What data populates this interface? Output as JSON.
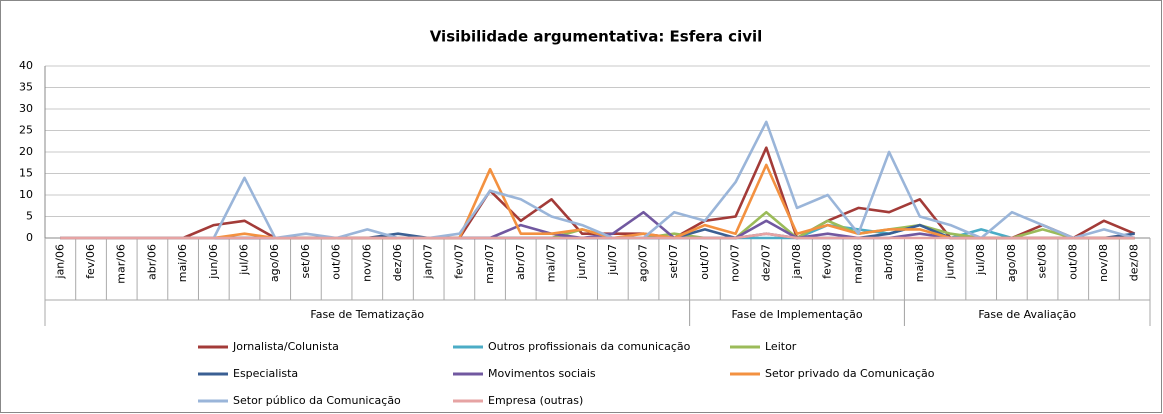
{
  "chart_data": {
    "type": "line",
    "title": "Visibilidade argumentativa: Esfera civil",
    "categories": [
      "jan/06",
      "fev/06",
      "mar/06",
      "abr/06",
      "mai/06",
      "jun/06",
      "jul/06",
      "ago/06",
      "set/06",
      "out/06",
      "nov/06",
      "dez/06",
      "jan/07",
      "fev/07",
      "mar/07",
      "abr/07",
      "mai/07",
      "jun/07",
      "jul/07",
      "ago/07",
      "set/07",
      "out/07",
      "nov/07",
      "dez/07",
      "jan/08",
      "fev/08",
      "mar/08",
      "abr/08",
      "mai/08",
      "jun/08",
      "jul/08",
      "ago/08",
      "set/08",
      "out/08",
      "nov/08",
      "dez/08"
    ],
    "groups": [
      {
        "label": "Fase de Tematização",
        "first": "jan/06",
        "last": "set/07"
      },
      {
        "label": "Fase de Implementação",
        "first": "out/07",
        "last": "abr/08"
      },
      {
        "label": "Fase de Avaliação",
        "first": "mai/08",
        "last": "dez/08"
      }
    ],
    "ylim": [
      0,
      40
    ],
    "yticks": [
      0,
      5,
      10,
      15,
      20,
      25,
      30,
      35,
      40
    ],
    "grid": true,
    "series": [
      {
        "name": "Jornalista/Colunista",
        "color": "#a33b38",
        "values": [
          0,
          0,
          0,
          0,
          0,
          3,
          4,
          0,
          0,
          0,
          0,
          0,
          0,
          0,
          11,
          4,
          9,
          1,
          1,
          1,
          0,
          4,
          5,
          21,
          0,
          4,
          7,
          6,
          9,
          0,
          0,
          0,
          3,
          0,
          4,
          1
        ]
      },
      {
        "name": "Outros profissionais da comunicação",
        "color": "#4bacc6",
        "values": [
          0,
          0,
          0,
          0,
          0,
          0,
          0,
          0,
          0,
          0,
          0,
          0,
          0,
          0,
          0,
          0,
          0,
          0,
          0,
          0,
          0,
          0,
          0,
          0,
          0,
          3,
          2,
          1,
          3,
          0,
          2,
          0,
          0,
          0,
          0,
          0
        ]
      },
      {
        "name": "Leitor",
        "color": "#9bbb59",
        "values": [
          0,
          0,
          0,
          0,
          0,
          0,
          0,
          0,
          0,
          0,
          0,
          0,
          0,
          0,
          0,
          0,
          0,
          2,
          0,
          0,
          1,
          0,
          0,
          6,
          0,
          4,
          1,
          2,
          3,
          1,
          0,
          0,
          2,
          0,
          0,
          0
        ]
      },
      {
        "name": "Especialista",
        "color": "#3a5f93",
        "values": [
          0,
          0,
          0,
          0,
          0,
          0,
          0,
          0,
          0,
          0,
          0,
          1,
          0,
          0,
          0,
          0,
          0,
          0,
          0,
          0,
          0,
          2,
          0,
          1,
          0,
          0,
          0,
          1,
          3,
          0,
          0,
          0,
          0,
          0,
          0,
          1
        ]
      },
      {
        "name": "Movimentos sociais",
        "color": "#7158a0",
        "values": [
          0,
          0,
          0,
          0,
          0,
          0,
          0,
          0,
          0,
          0,
          0,
          0,
          0,
          0,
          0,
          3,
          1,
          0,
          1,
          6,
          0,
          0,
          0,
          4,
          0,
          1,
          0,
          0,
          1,
          0,
          0,
          0,
          0,
          0,
          0,
          0
        ]
      },
      {
        "name": "Setor privado da Comunicação",
        "color": "#f39140",
        "values": [
          0,
          0,
          0,
          0,
          0,
          0,
          1,
          0,
          0,
          0,
          0,
          0,
          0,
          0,
          16,
          1,
          1,
          2,
          0,
          1,
          0,
          3,
          1,
          17,
          1,
          3,
          1,
          2,
          2,
          0,
          0,
          0,
          0,
          0,
          0,
          0
        ]
      },
      {
        "name": "Setor público da Comunicação",
        "color": "#9ab5d9",
        "values": [
          0,
          0,
          0,
          0,
          0,
          0,
          14,
          0,
          1,
          0,
          2,
          0,
          0,
          1,
          11,
          9,
          5,
          3,
          0,
          0,
          6,
          4,
          13,
          27,
          7,
          10,
          1,
          20,
          5,
          3,
          0,
          6,
          3,
          0,
          2,
          0
        ]
      },
      {
        "name": "Empresa (outras)",
        "color": "#e6a3a3",
        "values": [
          0,
          0,
          0,
          0,
          0,
          0,
          0,
          0,
          0,
          0,
          0,
          0,
          0,
          0,
          0,
          0,
          0,
          0,
          0,
          0,
          0,
          0,
          0,
          1,
          0,
          0,
          0,
          0,
          0,
          0,
          0,
          0,
          0,
          0,
          0,
          0
        ]
      }
    ]
  }
}
